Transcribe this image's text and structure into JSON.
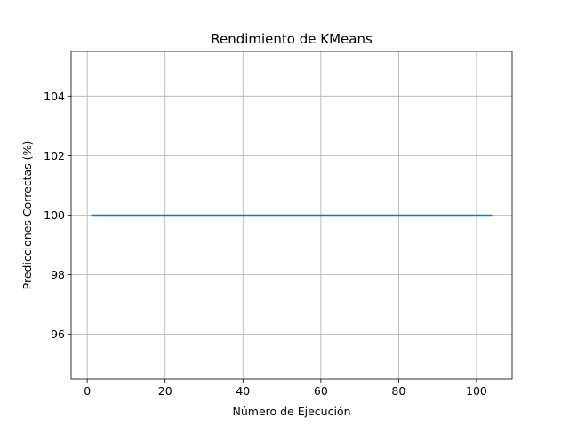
{
  "chart_data": {
    "type": "line",
    "title": "Rendimiento de KMeans",
    "xlabel": "Número de Ejecución",
    "ylabel": "Predicciones Correctas (%)",
    "xlim": [
      -4.15,
      109.15
    ],
    "ylim": [
      94.5,
      105.5
    ],
    "xticks": [
      0,
      20,
      40,
      60,
      80,
      100
    ],
    "yticks": [
      96,
      98,
      100,
      102,
      104
    ],
    "grid": true,
    "series": [
      {
        "color": "#1f77b4",
        "x": [
          1,
          104
        ],
        "y": [
          100,
          100
        ]
      }
    ]
  }
}
